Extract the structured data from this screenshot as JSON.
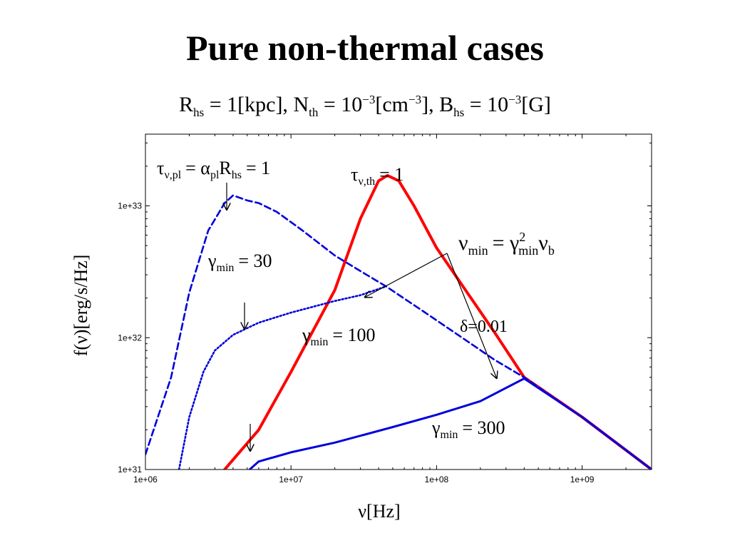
{
  "slide": {
    "title": "Pure non-thermal cases",
    "params": {
      "r_sym": "R",
      "r_sub": "hs",
      "r_val": "= 1[kpc],",
      "n_sym": "N",
      "n_sub": "th",
      "n_val": "= 10",
      "n_exp": "−3",
      "n_unit": "[cm",
      "n_unit_exp": "−3",
      "n_unit_end": "],",
      "b_sym": "B",
      "b_sub": "hs",
      "b_val": "= 10",
      "b_exp": "−3",
      "b_unit": "[G]"
    }
  },
  "chart_data": {
    "type": "line",
    "xscale": "log",
    "yscale": "log",
    "xlim": [
      1000000,
      3000000000
    ],
    "ylim": [
      1e+31,
      3.5e+33
    ],
    "xlabel": "ν[Hz]",
    "ylabel": "f(ν)[erg/s/Hz]",
    "xticks": [
      {
        "value": 1000000,
        "label": "1e+06"
      },
      {
        "value": 10000000,
        "label": "1e+07"
      },
      {
        "value": 100000000,
        "label": "1e+08"
      },
      {
        "value": 1000000000,
        "label": "1e+09"
      }
    ],
    "yticks": [
      {
        "value": 1e+31,
        "label": "1e+31"
      },
      {
        "value": 1e+32,
        "label": "1e+32"
      },
      {
        "value": 1e+33,
        "label": "1e+33"
      }
    ],
    "series": [
      {
        "color": "#ff0000",
        "style": "solid",
        "points": [
          [
            3500000,
            1e+31
          ],
          [
            6000000,
            2e+31
          ],
          [
            10000000,
            5.5e+31
          ],
          [
            20000000,
            2.3e+32
          ],
          [
            30000000,
            8e+32
          ],
          [
            40000000,
            1.55e+33
          ],
          [
            46000000,
            1.7e+33
          ],
          [
            55000000,
            1.55e+33
          ],
          [
            70000000,
            1e+33
          ],
          [
            100000000,
            4.8e+32
          ],
          [
            150000000,
            2.5e+32
          ],
          [
            250000000,
            1.1e+32
          ],
          [
            400000000,
            5e+31
          ],
          [
            1000000000,
            2.5e+31
          ],
          [
            3000000000,
            1e+31
          ]
        ]
      },
      {
        "color": "#0000dd",
        "style": "dashed",
        "points": [
          [
            1000000,
            1.3e+31
          ],
          [
            1500000,
            5e+31
          ],
          [
            2000000,
            2.2e+32
          ],
          [
            2700000,
            6.5e+32
          ],
          [
            3500000,
            1.05e+33
          ],
          [
            4000000,
            1.2e+33
          ],
          [
            5000000,
            1.1e+33
          ],
          [
            6000000,
            1.05e+33
          ],
          [
            8000000,
            9e+32
          ],
          [
            12000000,
            6.5e+32
          ],
          [
            20000000,
            4.2e+32
          ],
          [
            30000000,
            3.2e+32
          ],
          [
            45000000,
            2.45e+32
          ],
          [
            80000000,
            1.6e+32
          ],
          [
            150000000,
            1e+32
          ],
          [
            250000000,
            6.8e+31
          ],
          [
            400000000,
            5e+31
          ],
          [
            1000000000,
            2.5e+31
          ],
          [
            3000000000,
            1e+31
          ]
        ]
      },
      {
        "color": "#0000dd",
        "style": "dotted",
        "points": [
          [
            1700000,
            1e+31
          ],
          [
            2000000,
            2.5e+31
          ],
          [
            2500000,
            5.5e+31
          ],
          [
            3000000,
            8e+31
          ],
          [
            4000000,
            1.05e+32
          ],
          [
            6000000,
            1.3e+32
          ],
          [
            10000000,
            1.55e+32
          ],
          [
            20000000,
            1.9e+32
          ],
          [
            30000000,
            2.1e+32
          ],
          [
            45000000,
            2.45e+32
          ]
        ]
      },
      {
        "color": "#0000dd",
        "style": "solid",
        "points": [
          [
            5200000,
            1e+31
          ],
          [
            6000000,
            1.15e+31
          ],
          [
            10000000,
            1.35e+31
          ],
          [
            20000000,
            1.6e+31
          ],
          [
            50000000,
            2.1e+31
          ],
          [
            100000000,
            2.6e+31
          ],
          [
            200000000,
            3.3e+31
          ],
          [
            400000000,
            4.9e+31
          ],
          [
            1000000000,
            2.5e+31
          ],
          [
            3000000000,
            1e+31
          ]
        ]
      }
    ],
    "annotations": {
      "tau_pl": {
        "sym": "τ",
        "sub": "ν,pl",
        "mid": "= α",
        "sub2": "pl",
        "mid2": "R",
        "sub3": "hs",
        "end": "= 1"
      },
      "tau_th": {
        "sym": "τ",
        "sub": "ν,th",
        "end": "= 1"
      },
      "nu_min": {
        "sym": "ν",
        "sub": "min",
        "mid": "= γ",
        "sup": "2",
        "sub2": "min",
        "mid2": "ν",
        "sub3": "b"
      },
      "gamma30": {
        "sym": "γ",
        "sub": "min",
        "end": "= 30"
      },
      "gamma100": {
        "sym": "γ",
        "sub": "min",
        "end": "= 100"
      },
      "gamma300": {
        "sym": "γ",
        "sub": "min",
        "end": "= 300"
      },
      "delta": {
        "text": "δ=0.01"
      }
    }
  }
}
